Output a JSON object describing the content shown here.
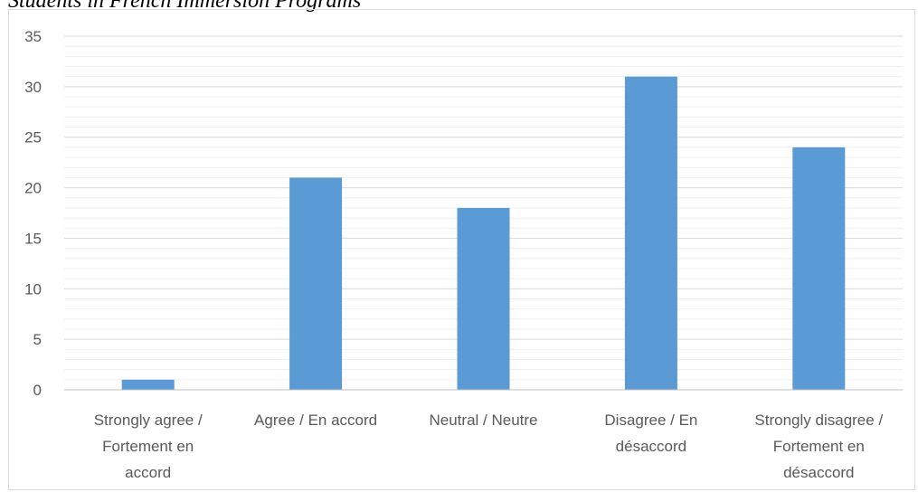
{
  "title": "Students in French Immersion Programs",
  "colors": {
    "bar": "#5b9bd5",
    "grid_major": "#d9d9d9",
    "grid_minor": "#efefef",
    "axis": "#bfbfbf",
    "text": "#595959"
  },
  "chart_data": {
    "type": "bar",
    "categories": [
      [
        "Strongly agree /",
        "Fortement en",
        "accord"
      ],
      [
        "Agree / En accord"
      ],
      [
        "Neutral / Neutre"
      ],
      [
        "Disagree / En",
        "désaccord"
      ],
      [
        "Strongly disagree /",
        "Fortement en",
        "désaccord"
      ]
    ],
    "values": [
      1,
      21,
      18,
      31,
      24
    ],
    "ylim": [
      0,
      35
    ],
    "yticks": [
      0,
      5,
      10,
      15,
      20,
      25,
      30,
      35
    ],
    "grid": true,
    "legend": "none"
  }
}
